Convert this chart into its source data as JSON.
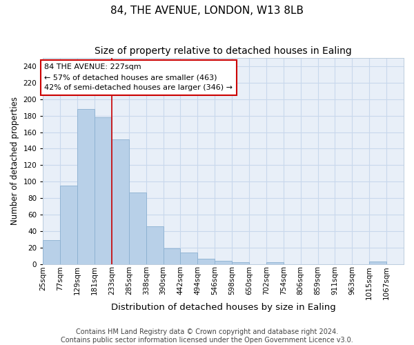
{
  "title1": "84, THE AVENUE, LONDON, W13 8LB",
  "title2": "Size of property relative to detached houses in Ealing",
  "xlabel": "Distribution of detached houses by size in Ealing",
  "ylabel": "Number of detached properties",
  "bin_labels": [
    "25sqm",
    "77sqm",
    "129sqm",
    "181sqm",
    "233sqm",
    "285sqm",
    "338sqm",
    "390sqm",
    "442sqm",
    "494sqm",
    "546sqm",
    "598sqm",
    "650sqm",
    "702sqm",
    "754sqm",
    "806sqm",
    "859sqm",
    "911sqm",
    "963sqm",
    "1015sqm",
    "1067sqm"
  ],
  "bar_heights": [
    29,
    95,
    188,
    178,
    151,
    87,
    46,
    19,
    14,
    6,
    4,
    2,
    0,
    2,
    0,
    0,
    0,
    0,
    0,
    3,
    0
  ],
  "bar_color": "#b8d0e8",
  "bar_edge_color": "#8ab0d0",
  "bar_edge_width": 0.6,
  "grid_color": "#c8d8ec",
  "bg_color": "#e8eff8",
  "ylim_max": 250,
  "yticks": [
    0,
    20,
    40,
    60,
    80,
    100,
    120,
    140,
    160,
    180,
    200,
    220,
    240
  ],
  "red_line_x": 4,
  "red_line_color": "#cc0000",
  "annotation_text": "84 THE AVENUE: 227sqm\n← 57% of detached houses are smaller (463)\n42% of semi-detached houses are larger (346) →",
  "annotation_box_facecolor": "#ffffff",
  "annotation_box_edgecolor": "#cc0000",
  "footer_text": "Contains HM Land Registry data © Crown copyright and database right 2024.\nContains public sector information licensed under the Open Government Licence v3.0.",
  "title1_fontsize": 11,
  "title2_fontsize": 10,
  "xlabel_fontsize": 9.5,
  "ylabel_fontsize": 8.5,
  "tick_fontsize": 7.5,
  "annotation_fontsize": 8,
  "footer_fontsize": 7
}
